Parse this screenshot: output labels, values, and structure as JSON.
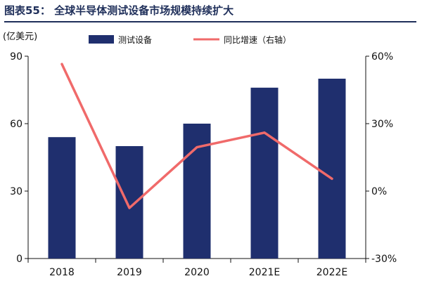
{
  "chart_data": {
    "type": "bar",
    "title": "图表55： 全球半导体测试设备市场规模持续扩大",
    "y_left_unit": "(亿美元)",
    "categories": [
      "2018",
      "2019",
      "2020",
      "2021E",
      "2022E"
    ],
    "series": [
      {
        "name": "测试设备",
        "type": "bar",
        "axis": "left",
        "values": [
          54,
          50,
          60,
          76,
          80
        ]
      },
      {
        "name": "同比增速（右轴）",
        "type": "line",
        "axis": "right",
        "values": [
          0.565,
          -0.075,
          0.195,
          0.26,
          0.055
        ]
      }
    ],
    "ylim_left": [
      0,
      90
    ],
    "yticks_left": [
      0,
      30,
      60,
      90
    ],
    "ylim_right": [
      -0.3,
      0.6
    ],
    "yticks_right_labels": [
      "-30%",
      "0%",
      "30%",
      "60%"
    ],
    "legend_position": "top",
    "grid": false
  },
  "colors": {
    "bar": "#1f2f6e",
    "line": "#f06a6a",
    "title": "#1f2f5a",
    "axis": "#111111"
  }
}
